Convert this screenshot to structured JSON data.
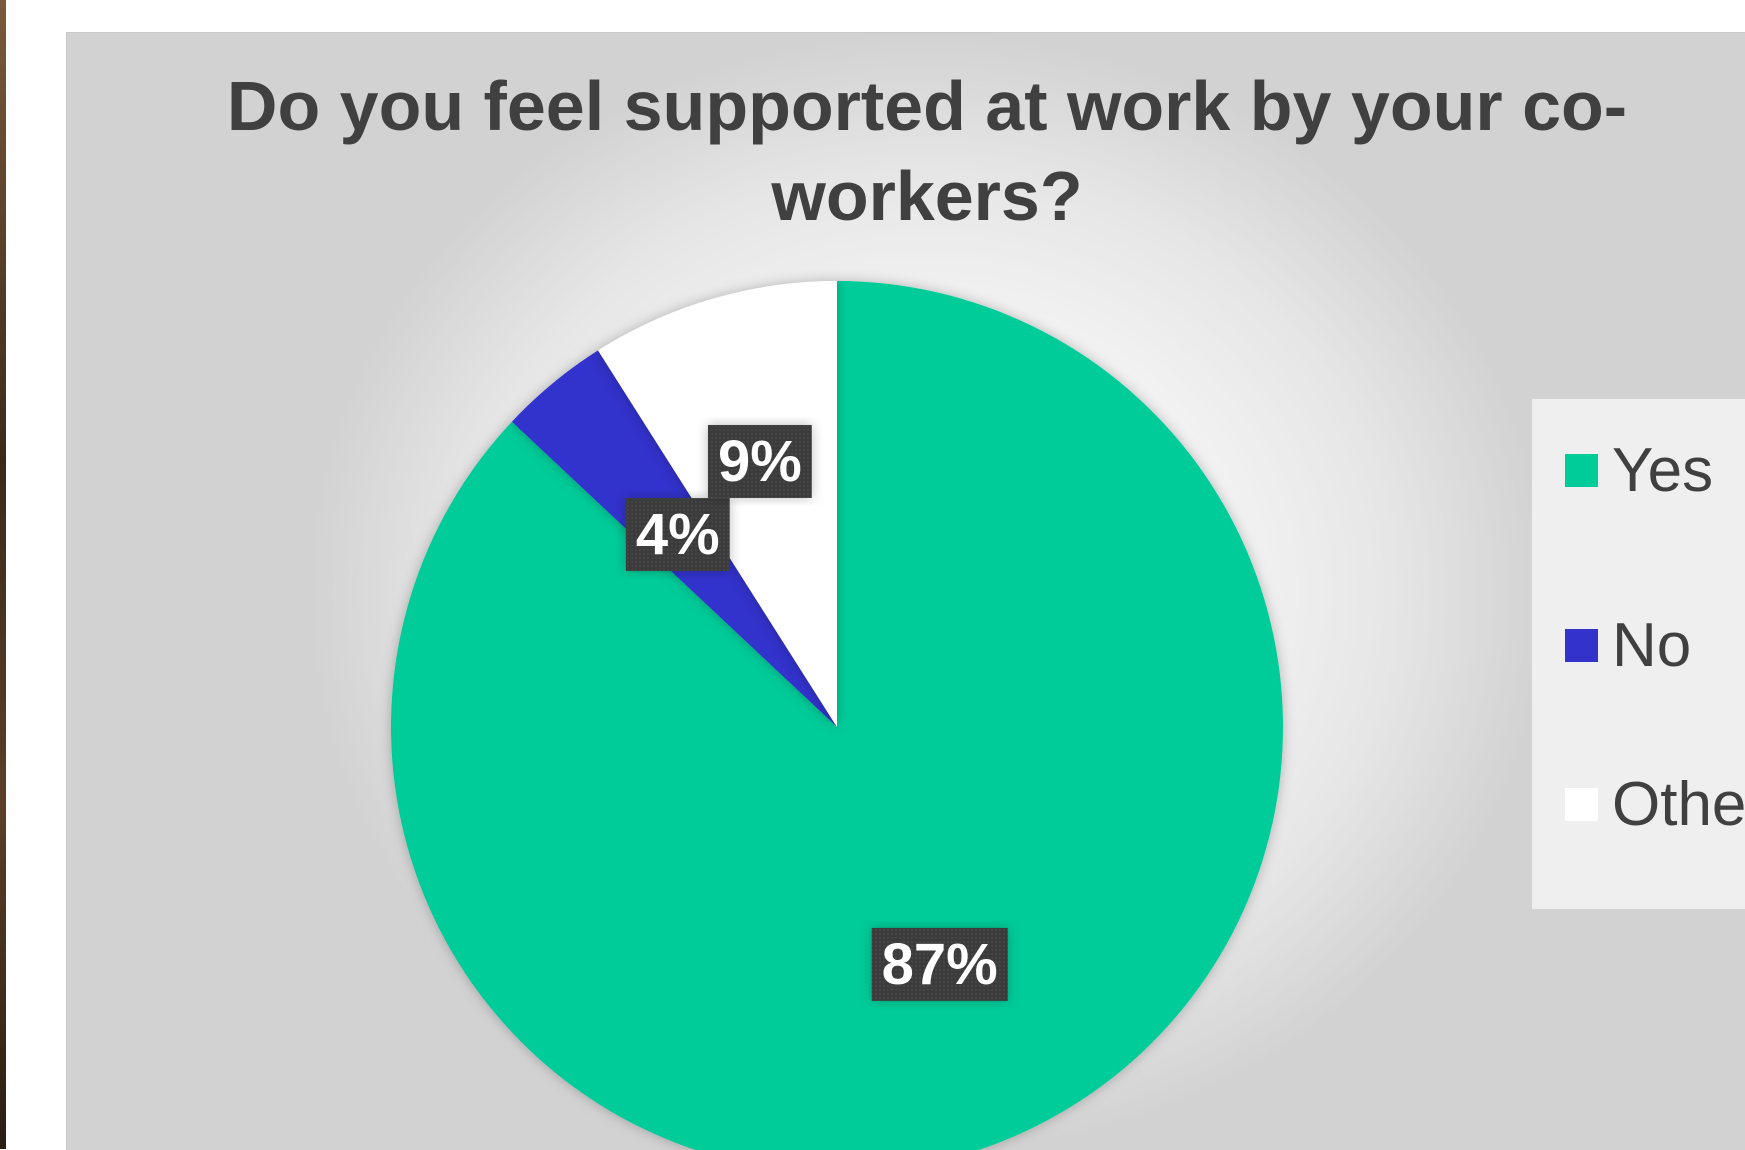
{
  "chart_data": {
    "type": "pie",
    "title": "Do you feel supported at work by your co-workers?",
    "categories": [
      "Yes",
      "No",
      "Other"
    ],
    "values": [
      87,
      4,
      9
    ],
    "data_labels": [
      "87%",
      "4%",
      "9%"
    ],
    "colors": [
      "#00cc99",
      "#3333cc",
      "#ffffff"
    ],
    "legend_position": "right"
  }
}
